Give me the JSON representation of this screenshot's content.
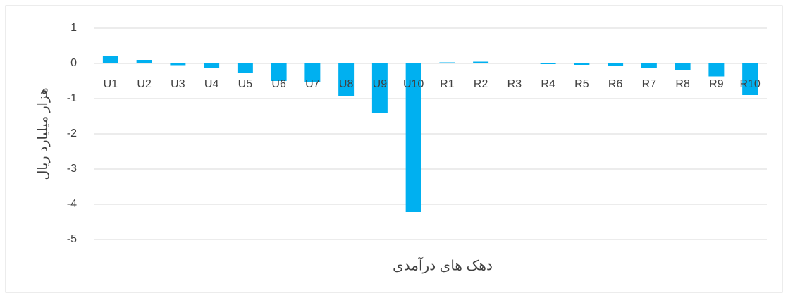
{
  "chart_data": {
    "type": "bar",
    "y_axis_label": "هزار میلیارد ریال",
    "x_axis_label": "دهک های درآمدی",
    "categories": [
      "U1",
      "U2",
      "U3",
      "U4",
      "U5",
      "U6",
      "U7",
      "U8",
      "U9",
      "U10",
      "R1",
      "R2",
      "R3",
      "R4",
      "R5",
      "R6",
      "R7",
      "R8",
      "R9",
      "R10"
    ],
    "values": [
      0.22,
      0.1,
      -0.05,
      -0.13,
      -0.27,
      -0.5,
      -0.52,
      -0.92,
      -1.4,
      -4.22,
      0.03,
      0.05,
      0.01,
      -0.02,
      -0.04,
      -0.08,
      -0.13,
      -0.18,
      -0.37,
      -0.9
    ],
    "color": "#00b0f0",
    "ylim": [
      -5,
      1
    ],
    "yticks": [
      -5,
      -4,
      -3,
      -2,
      -1,
      0,
      1
    ],
    "grid": true
  }
}
